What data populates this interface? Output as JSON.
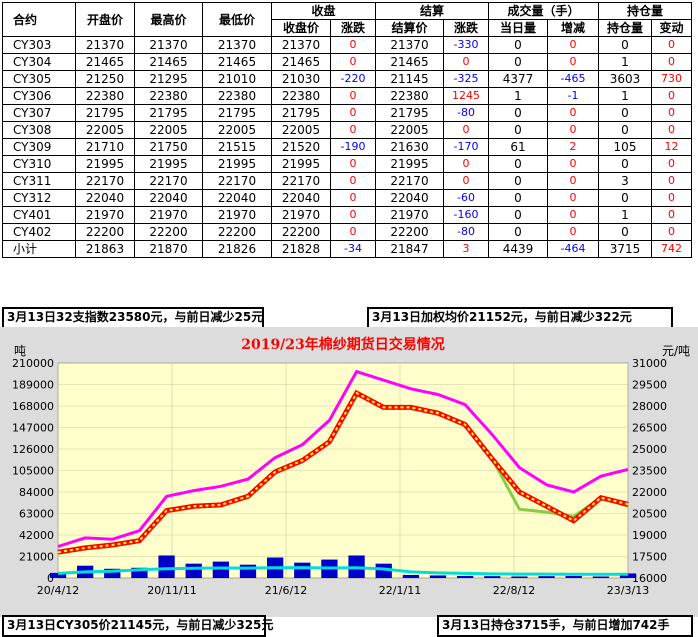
{
  "table": {
    "group_headers": {
      "close": "收盘",
      "settle": "结算",
      "volume": "成交量（手）",
      "oi": "持仓量"
    },
    "col_headers": [
      "合约",
      "开盘价",
      "最高价",
      "最低价",
      "收盘价",
      "涨跌",
      "结算价",
      "涨跌",
      "当日量",
      "增减",
      "持仓量",
      "变动"
    ],
    "rows": [
      [
        "CY303",
        "21370",
        "21370",
        "21370",
        "21370",
        "0",
        "21370",
        "-330",
        "0",
        "0",
        "0",
        "0"
      ],
      [
        "CY304",
        "21465",
        "21465",
        "21465",
        "21465",
        "0",
        "21465",
        "0",
        "0",
        "0",
        "1",
        "0"
      ],
      [
        "CY305",
        "21250",
        "21295",
        "21010",
        "21030",
        "-220",
        "21145",
        "-325",
        "4377",
        "-465",
        "3603",
        "730"
      ],
      [
        "CY306",
        "22380",
        "22380",
        "22380",
        "22380",
        "0",
        "22380",
        "1245",
        "1",
        "-1",
        "1",
        "0"
      ],
      [
        "CY307",
        "21795",
        "21795",
        "21795",
        "21795",
        "0",
        "21795",
        "-80",
        "0",
        "0",
        "0",
        "0"
      ],
      [
        "CY308",
        "22005",
        "22005",
        "22005",
        "22005",
        "0",
        "22005",
        "0",
        "0",
        "0",
        "0",
        "0"
      ],
      [
        "CY309",
        "21710",
        "21750",
        "21515",
        "21520",
        "-190",
        "21630",
        "-170",
        "61",
        "2",
        "105",
        "12"
      ],
      [
        "CY310",
        "21995",
        "21995",
        "21995",
        "21995",
        "0",
        "21995",
        "0",
        "0",
        "0",
        "0",
        "0"
      ],
      [
        "CY311",
        "22170",
        "22170",
        "22170",
        "22170",
        "0",
        "22170",
        "0",
        "0",
        "0",
        "3",
        "0"
      ],
      [
        "CY312",
        "22040",
        "22040",
        "22040",
        "22040",
        "0",
        "22040",
        "-60",
        "0",
        "0",
        "0",
        "0"
      ],
      [
        "CY401",
        "21970",
        "21970",
        "21970",
        "21970",
        "0",
        "21970",
        "-160",
        "0",
        "0",
        "1",
        "0"
      ],
      [
        "CY402",
        "22200",
        "22200",
        "22200",
        "22200",
        "0",
        "22200",
        "-80",
        "0",
        "0",
        "0",
        "0"
      ],
      [
        "小计",
        "21863",
        "21870",
        "21826",
        "21828",
        "-34",
        "21847",
        "3",
        "4439",
        "-464",
        "3715",
        "742"
      ]
    ]
  },
  "notes": {
    "index": "3月13日32支指数23580元，与前日减少25元",
    "weighted": "3月13日加权均价21152元，与前日减少322元",
    "cy305": "3月13日CY305价21145元，与前日减少325元",
    "holding": "3月13日持仓3715手，与前日增加742手"
  },
  "colors": {
    "positive": "#ff0000",
    "negative": "#0000ff",
    "plot_bg": "#ffffcc",
    "frame_bg": "#dcdcdc"
  },
  "chart_data": {
    "type": "line",
    "title": "2019/23年棉纱期货日交易情况",
    "left_unit": "吨",
    "right_unit": "元/吨",
    "left_ticks": [
      "0",
      "21000",
      "42000",
      "63000",
      "84000",
      "105000",
      "126000",
      "147000",
      "168000",
      "189000",
      "210000"
    ],
    "right_ticks": [
      "16000",
      "17500",
      "19000",
      "20500",
      "22000",
      "23500",
      "25000",
      "26500",
      "28000",
      "29500",
      "31000"
    ],
    "x_ticks": [
      "20/4/12",
      "20/11/11",
      "21/6/12",
      "22/1/11",
      "22/8/12",
      "23/3/13"
    ],
    "ylim_left": [
      0,
      210000
    ],
    "ylim_right": [
      16000,
      31000
    ],
    "x": [
      "20/4/12",
      "20/6/1",
      "20/8/1",
      "20/10/1",
      "20/11/11",
      "21/1/1",
      "21/2/15",
      "21/4/1",
      "21/6/12",
      "21/8/1",
      "21/9/15",
      "21/10/15",
      "21/11/20",
      "22/1/11",
      "22/3/1",
      "22/5/1",
      "22/6/1",
      "22/8/12",
      "22/10/1",
      "22/12/1",
      "23/1/15",
      "23/3/13"
    ],
    "series": [
      {
        "name": "",
        "axis": "right",
        "color": "#ff00ff",
        "values": [
          18200,
          18800,
          18700,
          19300,
          21700,
          22100,
          22400,
          22900,
          24400,
          25300,
          27000,
          30400,
          29800,
          29200,
          28800,
          28100,
          26000,
          23700,
          22500,
          22000,
          23100,
          23580
        ]
      },
      {
        "name": "",
        "axis": "right",
        "color": "#ff0000",
        "values": [
          17800,
          18100,
          18300,
          18600,
          20700,
          21000,
          21100,
          21700,
          23400,
          24200,
          25500,
          28900,
          27900,
          27900,
          27500,
          26700,
          24300,
          22000,
          21000,
          20000,
          21600,
          21145
        ]
      },
      {
        "name": "",
        "axis": "right",
        "color": "#ffff00",
        "values": [
          17800,
          18100,
          18300,
          18600,
          20700,
          21000,
          21100,
          21700,
          23400,
          24200,
          25500,
          28900,
          27900,
          27900,
          27500,
          26700,
          24300,
          22000,
          21000,
          20000,
          21600,
          21152
        ]
      },
      {
        "name": "",
        "axis": "right",
        "color": "#88cc44",
        "values": [
          null,
          null,
          null,
          null,
          null,
          null,
          null,
          null,
          null,
          null,
          null,
          null,
          null,
          null,
          null,
          26700,
          24300,
          20800,
          20600,
          20300,
          21600,
          21000
        ]
      },
      {
        "name": "",
        "axis": "left",
        "color": "#00dddd",
        "values": [
          4500,
          6000,
          6500,
          8000,
          9000,
          9500,
          9800,
          9700,
          10000,
          10200,
          9800,
          10000,
          8800,
          6000,
          5000,
          4500,
          4000,
          3800,
          3800,
          3700,
          3700,
          3715
        ]
      },
      {
        "name": "",
        "axis": "left",
        "color": "#0000cc",
        "values": [
          5000,
          12000,
          9000,
          10000,
          22000,
          14000,
          16000,
          13000,
          20000,
          15000,
          18000,
          22000,
          14000,
          3000,
          2500,
          2000,
          1800,
          1500,
          1800,
          2000,
          1500,
          4439
        ]
      }
    ]
  }
}
